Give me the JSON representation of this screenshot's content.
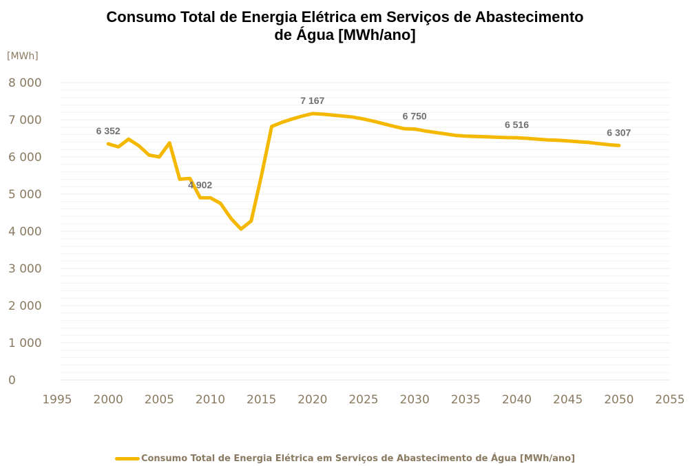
{
  "chart_data": {
    "type": "line",
    "title_line1": "Consumo Total de Energia Elétrica em Serviços de Abastecimento",
    "title_line2": "de Água [MWh/ano]",
    "ylabel": "[MWh]",
    "xlabel": "",
    "xlim": [
      1995,
      2055
    ],
    "ylim": [
      0,
      8000
    ],
    "x_ticks": [
      1995,
      2000,
      2005,
      2010,
      2015,
      2020,
      2025,
      2030,
      2035,
      2040,
      2045,
      2050,
      2055
    ],
    "y_ticks": [
      0,
      1000,
      2000,
      3000,
      4000,
      5000,
      6000,
      7000,
      8000
    ],
    "y_tick_labels": [
      "0",
      "1 000",
      "2 000",
      "3 000",
      "4 000",
      "5 000",
      "6 000",
      "7 000",
      "8 000"
    ],
    "grid": true,
    "legend_position": "bottom",
    "series": [
      {
        "name": "Consumo Total de Energia Elétrica em Serviços de Abastecimento de Água [MWh/ano]",
        "color": "#f5b800",
        "x": [
          2000,
          2001,
          2002,
          2003,
          2004,
          2005,
          2006,
          2007,
          2008,
          2009,
          2010,
          2011,
          2012,
          2013,
          2014,
          2015,
          2016,
          2017,
          2018,
          2019,
          2020,
          2021,
          2022,
          2023,
          2024,
          2025,
          2026,
          2027,
          2028,
          2029,
          2030,
          2031,
          2032,
          2033,
          2034,
          2035,
          2036,
          2037,
          2038,
          2039,
          2040,
          2041,
          2042,
          2043,
          2044,
          2045,
          2046,
          2047,
          2048,
          2049,
          2050
        ],
        "y": [
          6352,
          6270,
          6480,
          6300,
          6050,
          6000,
          6380,
          5400,
          5420,
          4902,
          4900,
          4750,
          4350,
          4060,
          4280,
          5500,
          6820,
          6930,
          7020,
          7100,
          7167,
          7150,
          7125,
          7100,
          7070,
          7020,
          6960,
          6890,
          6820,
          6760,
          6750,
          6700,
          6660,
          6620,
          6580,
          6560,
          6550,
          6540,
          6530,
          6520,
          6516,
          6500,
          6480,
          6460,
          6450,
          6430,
          6410,
          6390,
          6360,
          6330,
          6307
        ]
      }
    ],
    "data_labels": [
      {
        "x": 2000,
        "y": 6352,
        "text": "6 352"
      },
      {
        "x": 2009,
        "y": 4902,
        "text": "4 902"
      },
      {
        "x": 2020,
        "y": 7167,
        "text": "7 167"
      },
      {
        "x": 2030,
        "y": 6750,
        "text": "6 750"
      },
      {
        "x": 2040,
        "y": 6516,
        "text": "6 516"
      },
      {
        "x": 2050,
        "y": 6307,
        "text": "6 307"
      }
    ]
  }
}
